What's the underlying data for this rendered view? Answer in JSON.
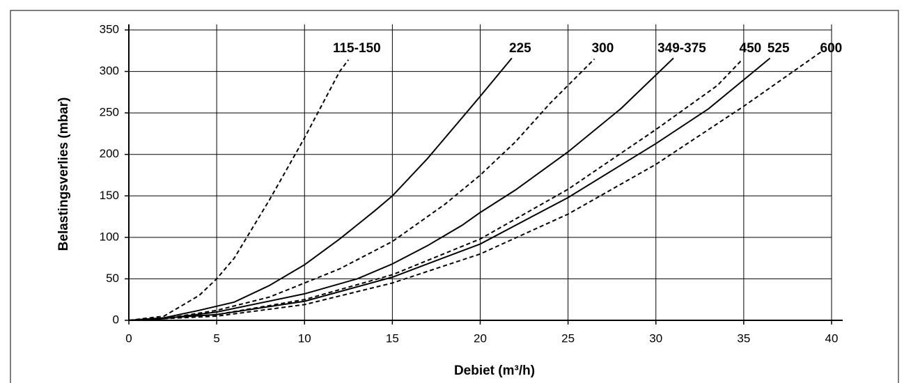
{
  "chart_data": {
    "type": "line",
    "xlabel": "Debiet (m³/h)",
    "ylabel": "Belastingsverlies (mbar)",
    "xlim": [
      0,
      40
    ],
    "xticks": [
      0,
      5,
      10,
      15,
      20,
      25,
      30,
      35,
      40
    ],
    "ylim": [
      0,
      350
    ],
    "yticks": [
      0,
      50,
      100,
      150,
      200,
      250,
      300,
      350
    ],
    "grid": true,
    "series": [
      {
        "name": "115-150",
        "color": "#000000",
        "dashed": true,
        "x": [
          0,
          2,
          4,
          5,
          6,
          8,
          10,
          12,
          12.5
        ],
        "values": [
          0,
          5,
          30,
          50,
          75,
          145,
          220,
          300,
          314
        ]
      },
      {
        "name": "225",
        "color": "#000000",
        "dashed": false,
        "x": [
          0,
          2,
          4,
          6,
          8,
          10,
          12,
          14,
          15,
          17,
          19,
          20,
          21.8
        ],
        "values": [
          0,
          3,
          12,
          22,
          42,
          67,
          98,
          132,
          150,
          195,
          245,
          270,
          316
        ]
      },
      {
        "name": "300",
        "color": "#000000",
        "dashed": true,
        "x": [
          0,
          2,
          5,
          8,
          10,
          12,
          15,
          18,
          20,
          22,
          24,
          26.5
        ],
        "values": [
          0,
          2,
          12,
          28,
          45,
          62,
          95,
          140,
          175,
          215,
          262,
          315
        ]
      },
      {
        "name": "349-375",
        "color": "#000000",
        "dashed": false,
        "x": [
          0,
          2,
          5,
          10,
          13,
          15,
          17,
          19,
          20,
          22,
          25,
          28,
          31
        ],
        "values": [
          0,
          2,
          10,
          32,
          50,
          68,
          90,
          115,
          130,
          157,
          203,
          255,
          316
        ]
      },
      {
        "name": "450",
        "color": "#000000",
        "dashed": true,
        "x": [
          0,
          5,
          10,
          15,
          20,
          25,
          30,
          33.5,
          34.9
        ],
        "values": [
          0,
          7,
          25,
          55,
          98,
          158,
          230,
          283,
          314
        ]
      },
      {
        "name": "525",
        "color": "#000000",
        "dashed": false,
        "x": [
          0,
          5,
          10,
          15,
          20,
          25,
          30,
          33,
          36.5
        ],
        "values": [
          0,
          7,
          23,
          52,
          92,
          148,
          213,
          255,
          316
        ]
      },
      {
        "name": "600",
        "color": "#000000",
        "dashed": true,
        "x": [
          0,
          5,
          10,
          15,
          20,
          25,
          30,
          35,
          39.5
        ],
        "values": [
          0,
          5,
          19,
          45,
          80,
          128,
          188,
          258,
          325
        ]
      }
    ]
  }
}
